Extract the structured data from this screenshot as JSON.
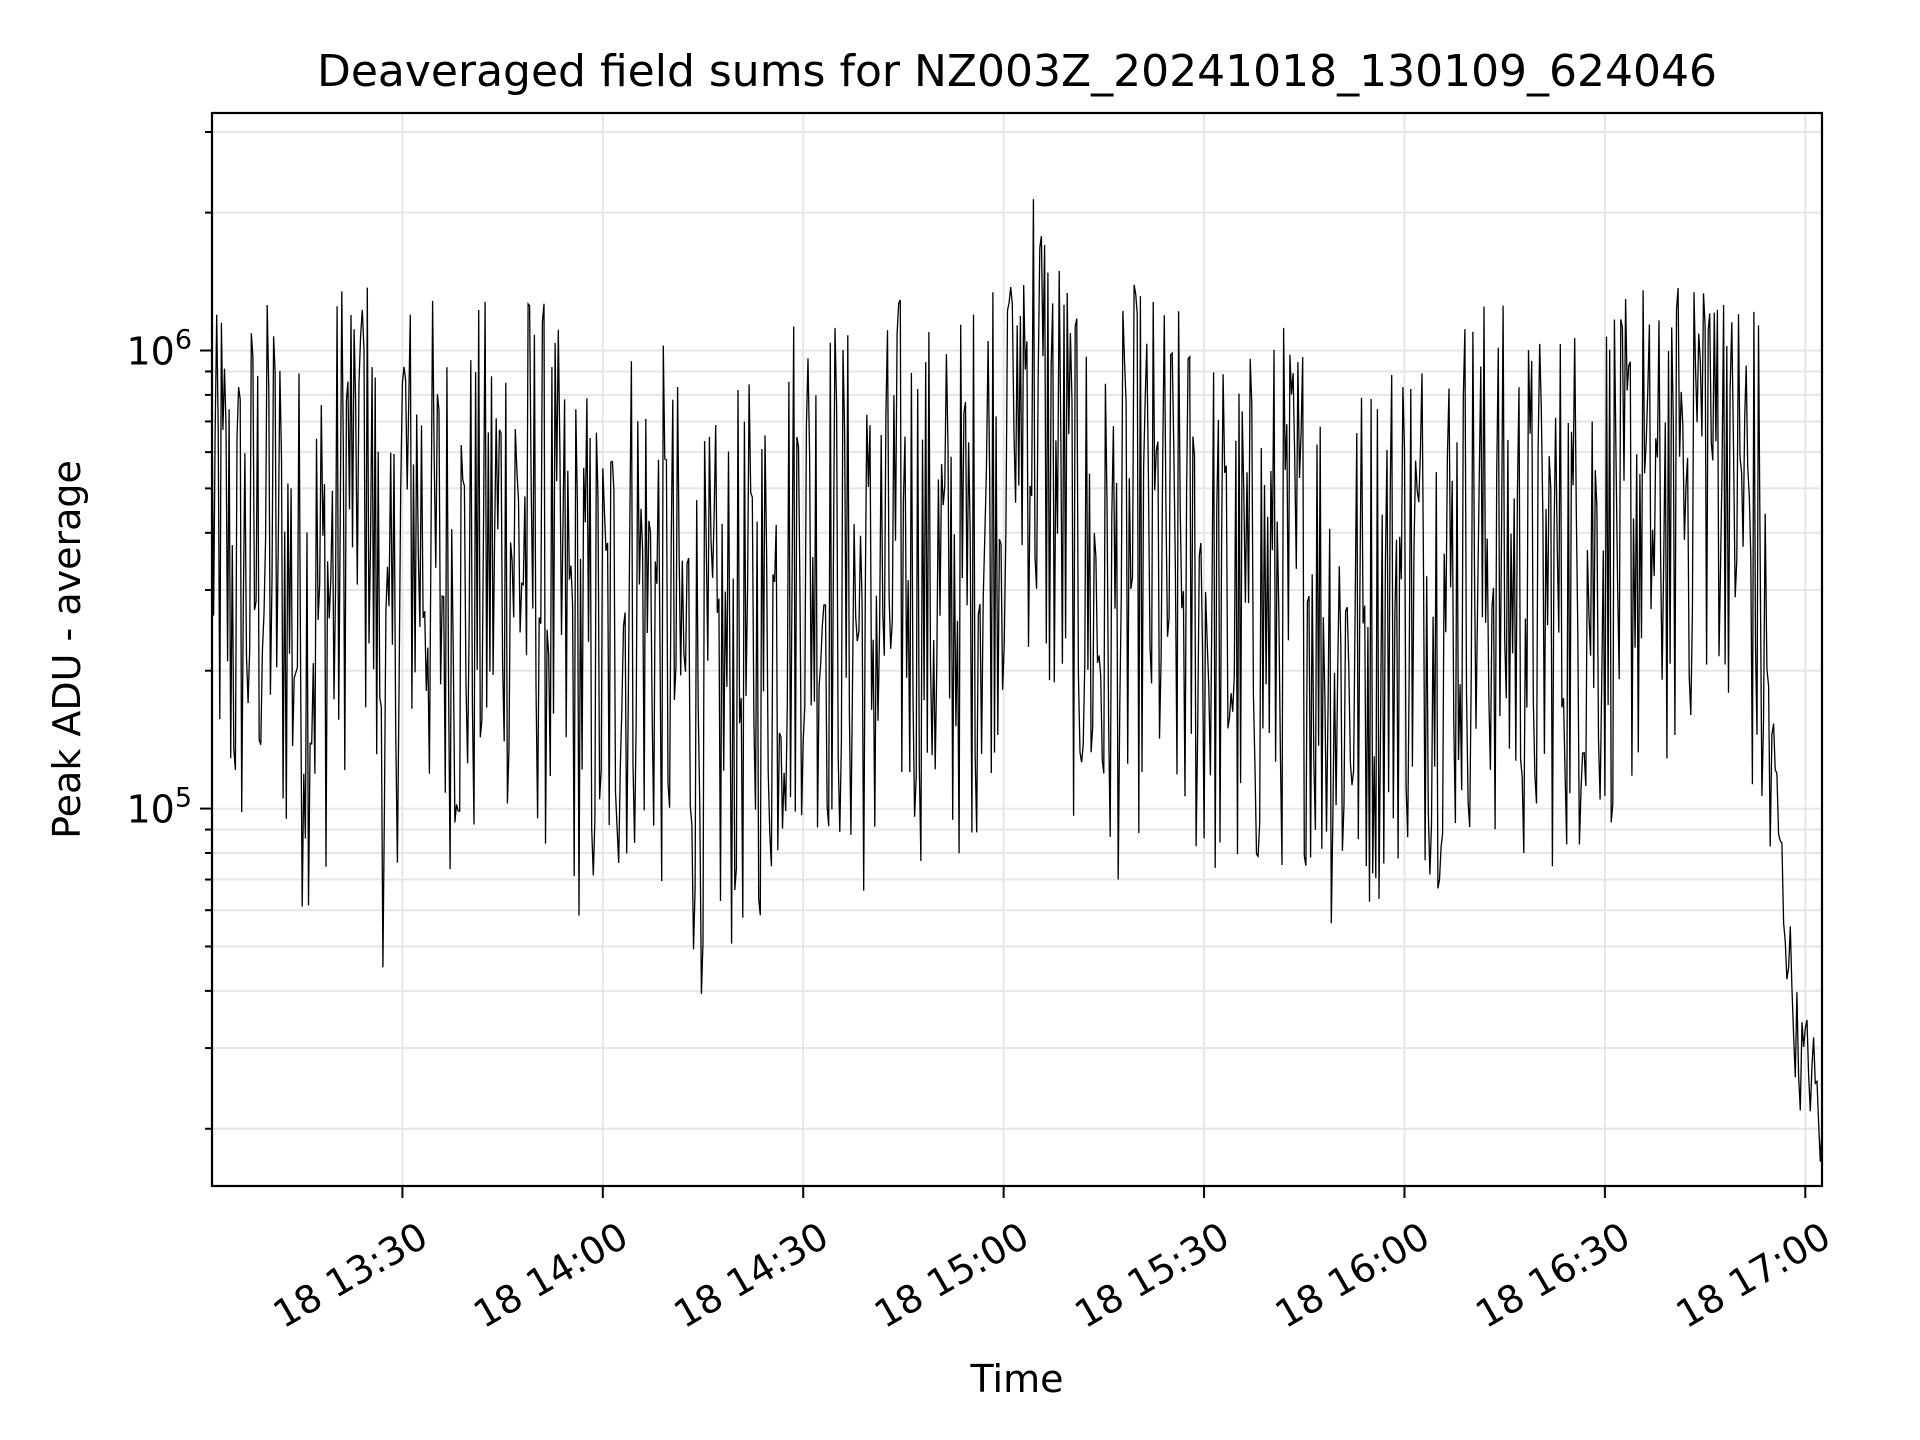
{
  "chart_data": {
    "type": "line",
    "title": "Deaveraged field sums for NZ003Z_20241018_130109_624046",
    "xlabel": "Time",
    "ylabel": "Peak ADU - average",
    "xscale": "time",
    "yscale": "log",
    "xlim": [
      "2024-10-18 13:01:30",
      "2024-10-18 17:02:30"
    ],
    "ylim": [
      15000,
      3300000
    ],
    "grid": true,
    "legend": "none",
    "x_ticks": [
      "2024-10-18 13:30",
      "2024-10-18 14:00",
      "2024-10-18 14:30",
      "2024-10-18 15:00",
      "2024-10-18 15:30",
      "2024-10-18 16:00",
      "2024-10-18 16:30",
      "2024-10-18 17:00"
    ],
    "x_tick_labels": [
      "18 13:30",
      "18 14:00",
      "18 14:30",
      "18 15:00",
      "18 15:30",
      "18 16:00",
      "18 16:30",
      "18 17:00"
    ],
    "y_ticks": [
      {
        "value": 100000,
        "base": "10",
        "exp": "5"
      },
      {
        "value": 1000000,
        "base": "10",
        "exp": "6"
      }
    ],
    "series": [
      {
        "color": "#000000",
        "x": [
          "2024-10-18 13:01:30",
          "2024-10-18 13:05:00",
          "2024-10-18 13:10:00",
          "2024-10-18 13:15:00",
          "2024-10-18 13:20:00",
          "2024-10-18 13:23:00",
          "2024-10-18 13:25:00",
          "2024-10-18 13:28:00",
          "2024-10-18 13:30:00",
          "2024-10-18 13:35:00",
          "2024-10-18 13:40:00",
          "2024-10-18 13:45:00",
          "2024-10-18 13:50:00",
          "2024-10-18 13:55:00",
          "2024-10-18 14:00:00",
          "2024-10-18 14:05:00",
          "2024-10-18 14:10:00",
          "2024-10-18 14:15:00",
          "2024-10-18 14:20:00",
          "2024-10-18 14:25:00",
          "2024-10-18 14:30:00",
          "2024-10-18 14:35:00",
          "2024-10-18 14:40:00",
          "2024-10-18 14:45:00",
          "2024-10-18 14:50:00",
          "2024-10-18 14:55:00",
          "2024-10-18 15:03:00",
          "2024-10-18 15:10:00",
          "2024-10-18 15:15:00",
          "2024-10-18 15:20:00",
          "2024-10-18 15:25:00",
          "2024-10-18 15:30:00",
          "2024-10-18 15:35:00",
          "2024-10-18 15:40:00",
          "2024-10-18 15:45:00",
          "2024-10-18 15:50:00",
          "2024-10-18 15:55:00",
          "2024-10-18 16:00:00",
          "2024-10-18 16:05:00",
          "2024-10-18 16:10:00",
          "2024-10-18 16:15:00",
          "2024-10-18 16:20:00",
          "2024-10-18 16:25:00",
          "2024-10-18 16:30:00",
          "2024-10-18 16:35:00",
          "2024-10-18 16:40:00",
          "2024-10-18 16:45:00",
          "2024-10-18 16:48:00",
          "2024-10-18 16:50:00",
          "2024-10-18 16:53:00",
          "2024-10-18 16:55:00",
          "2024-10-18 16:57:00",
          "2024-10-18 16:59:00",
          "2024-10-18 17:01:00",
          "2024-10-18 17:02:30"
        ],
        "y": [
          600000,
          350000,
          500000,
          300000,
          400000,
          1000000,
          600000,
          150000,
          700000,
          400000,
          350000,
          500000,
          450000,
          300000,
          250000,
          400000,
          300000,
          200000,
          250000,
          300000,
          500000,
          400000,
          300000,
          450000,
          350000,
          400000,
          1200000,
          500000,
          300000,
          450000,
          400000,
          350000,
          300000,
          350000,
          400000,
          250000,
          300000,
          400000,
          350000,
          450000,
          400000,
          350000,
          400000,
          450000,
          550000,
          600000,
          900000,
          1000000,
          700000,
          400000,
          150000,
          60000,
          30000,
          28000,
          20000
        ]
      }
    ],
    "annotations": []
  }
}
